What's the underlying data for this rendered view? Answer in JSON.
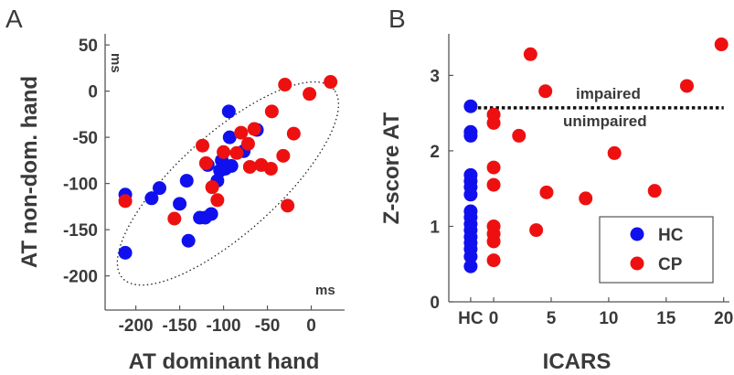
{
  "colors": {
    "hc": "#1010ee",
    "cp": "#ee1010",
    "axis": "#555555",
    "text": "#3a3a3a"
  },
  "panel_a": {
    "letter": "A",
    "unit_y": "ms",
    "unit_x": "ms"
  },
  "panel_b": {
    "letter": "B",
    "annot_impaired": "impaired",
    "annot_unimpaired": "unimpaired",
    "legend": [
      "HC",
      "CP"
    ]
  },
  "chart_data": [
    {
      "type": "scatter",
      "panel": "A",
      "xlabel": "AT dominant hand",
      "ylabel": "AT non-dom. hand",
      "xlim": [
        -235,
        38
      ],
      "ylim": [
        -237,
        62
      ],
      "xticks": [
        -200,
        -150,
        -100,
        -50,
        0
      ],
      "yticks": [
        50,
        0,
        -50,
        -100,
        -150,
        -200
      ],
      "ellipse": {
        "center": [
          -95,
          -100
        ],
        "semi_major": 158,
        "semi_minor": 55,
        "angle_deg": 40,
        "style": "dotted"
      },
      "series": [
        {
          "name": "HC",
          "color": "#1010ee",
          "points": [
            [
              -212,
              -112
            ],
            [
              -212,
              -175
            ],
            [
              -182,
              -116
            ],
            [
              -173,
              -105
            ],
            [
              -150,
              -122
            ],
            [
              -142,
              -97
            ],
            [
              -140,
              -162
            ],
            [
              -127,
              -137
            ],
            [
              -121,
              -137
            ],
            [
              -118,
              -80
            ],
            [
              -114,
              -133
            ],
            [
              -107,
              -97
            ],
            [
              -104,
              -86
            ],
            [
              -102,
              -75
            ],
            [
              -98,
              -84
            ],
            [
              -94,
              -22
            ],
            [
              -93,
              -50
            ],
            [
              -91,
              -81
            ],
            [
              -77,
              -65
            ],
            [
              -62,
              -42
            ]
          ]
        },
        {
          "name": "CP",
          "color": "#ee1010",
          "points": [
            [
              -212,
              -119
            ],
            [
              -156,
              -138
            ],
            [
              -124,
              -59
            ],
            [
              -120,
              -78
            ],
            [
              -113,
              -104
            ],
            [
              -107,
              -118
            ],
            [
              -100,
              -66
            ],
            [
              -85,
              -67
            ],
            [
              -80,
              -45
            ],
            [
              -72,
              -57
            ],
            [
              -70,
              -82
            ],
            [
              -65,
              -41
            ],
            [
              -57,
              -80
            ],
            [
              -46,
              -84
            ],
            [
              -45,
              -22
            ],
            [
              -32,
              -70
            ],
            [
              -30,
              7
            ],
            [
              -27,
              -124
            ],
            [
              -20,
              -46
            ],
            [
              -2,
              -3
            ],
            [
              22,
              10
            ]
          ]
        }
      ]
    },
    {
      "type": "scatter",
      "panel": "B",
      "xlabel": "ICARS",
      "ylabel": "Z-score AT",
      "xlim": [
        -3.9,
        20.5
      ],
      "ylim": [
        0,
        3.55
      ],
      "xticklabels": [
        "HC",
        "0",
        "5",
        "10",
        "15",
        "20"
      ],
      "xticks": [
        -2,
        0,
        5,
        10,
        15,
        20
      ],
      "yticks": [
        0,
        1,
        2,
        3
      ],
      "threshold": {
        "y": 2.57,
        "style": "dotted"
      },
      "legend_location": "bottom-right",
      "series": [
        {
          "name": "HC",
          "color": "#1010ee",
          "points": [
            [
              -2,
              2.59
            ],
            [
              -2,
              2.25
            ],
            [
              -2,
              2.2
            ],
            [
              -2,
              1.68
            ],
            [
              -2,
              1.6
            ],
            [
              -2,
              1.52
            ],
            [
              -2,
              1.42
            ],
            [
              -2,
              1.2
            ],
            [
              -2,
              1.12
            ],
            [
              -2,
              1.03
            ],
            [
              -2,
              0.95
            ],
            [
              -2,
              0.86
            ],
            [
              -2,
              0.78
            ],
            [
              -2,
              0.7
            ],
            [
              -2,
              0.6
            ],
            [
              -2,
              0.47
            ]
          ]
        },
        {
          "name": "CP",
          "color": "#ee1010",
          "points": [
            [
              0,
              2.48
            ],
            [
              0,
              2.37
            ],
            [
              0,
              1.78
            ],
            [
              0,
              1.55
            ],
            [
              0,
              1.0
            ],
            [
              0,
              0.9
            ],
            [
              0,
              0.8
            ],
            [
              0,
              0.55
            ],
            [
              2.2,
              2.2
            ],
            [
              3.2,
              3.28
            ],
            [
              3.7,
              0.95
            ],
            [
              4.5,
              2.79
            ],
            [
              4.6,
              1.45
            ],
            [
              8,
              1.37
            ],
            [
              10.5,
              1.97
            ],
            [
              14,
              1.47
            ],
            [
              16.8,
              2.86
            ],
            [
              19.8,
              3.41
            ]
          ]
        }
      ]
    }
  ]
}
